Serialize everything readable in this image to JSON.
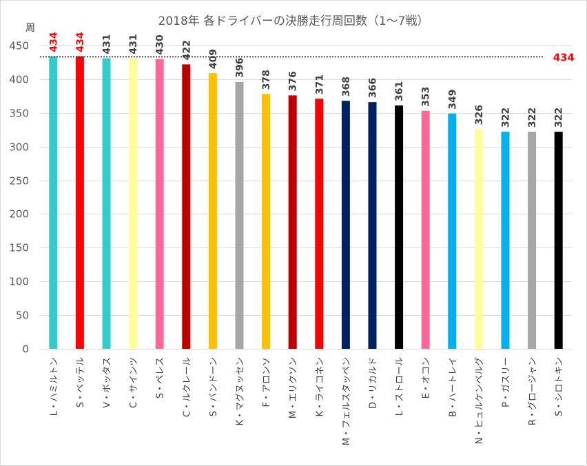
{
  "chart_data": {
    "type": "bar",
    "title": "2018年 各ドライバーの決勝走行周回数（1〜7戦）",
    "ylabel": "周",
    "ylim": [
      0,
      450
    ],
    "yticks": [
      0,
      50,
      100,
      150,
      200,
      250,
      300,
      350,
      400,
      450
    ],
    "grid": true,
    "reference_line": {
      "value": 434,
      "label": "434",
      "style": "dotted",
      "color": "#000000",
      "label_color": "#ff0000"
    },
    "categories": [
      "L・ハミルトン",
      "S・ベッテル",
      "V・ボッタス",
      "C・サインツ",
      "S・ペレス",
      "C・ルクレール",
      "S・バンドーン",
      "K・マグヌッセン",
      "F・アロンソ",
      "M・エリクソン",
      "K・ライコネン",
      "M・フェルスタッペン",
      "D・リカルド",
      "L・ストロール",
      "E・オコン",
      "B・ハートレイ",
      "N・ヒュルケンベルグ",
      "P・ガスリー",
      "R・グロージャン",
      "S・シロトキン"
    ],
    "values": [
      434,
      434,
      431,
      431,
      430,
      422,
      409,
      396,
      378,
      376,
      371,
      368,
      366,
      361,
      353,
      349,
      326,
      322,
      322,
      322
    ],
    "colors": [
      "#33cccc",
      "#ff0000",
      "#33cccc",
      "#ffff99",
      "#ff6699",
      "#c00000",
      "#ffc000",
      "#a6a6a6",
      "#ffc000",
      "#c00000",
      "#ff0000",
      "#002060",
      "#002060",
      "#000000",
      "#ff6699",
      "#00b0f0",
      "#ffff99",
      "#00b0f0",
      "#a6a6a6",
      "#000000"
    ],
    "highlight_labels": [
      0,
      1
    ]
  }
}
